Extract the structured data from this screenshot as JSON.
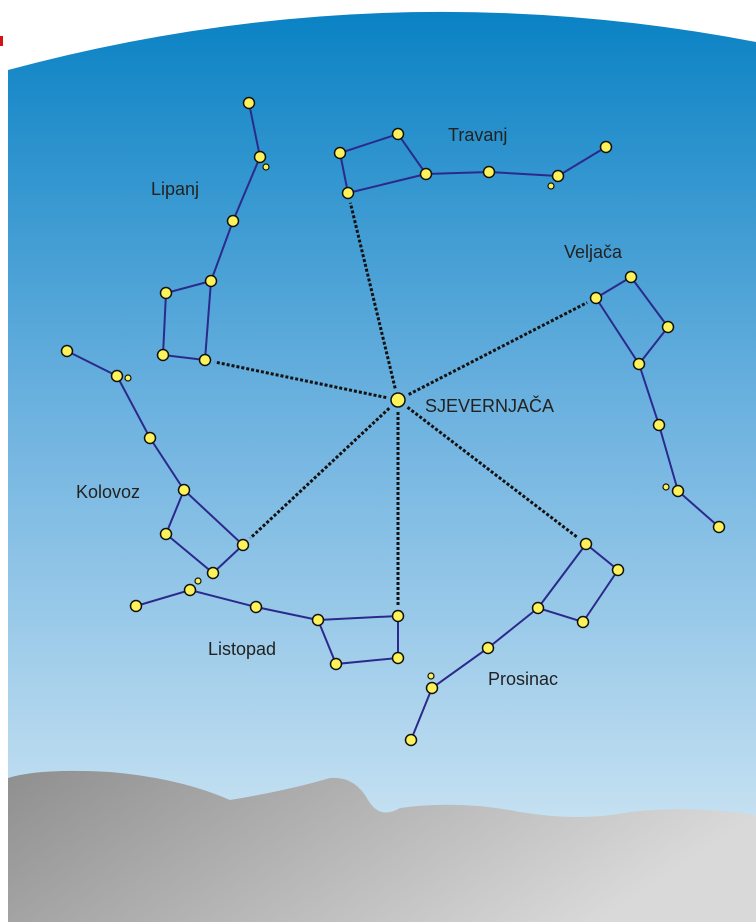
{
  "center": {
    "label": "SJEVERNJAČA"
  },
  "constellations": [
    {
      "label": "Travanj"
    },
    {
      "label": "Lipanj"
    },
    {
      "label": "Veljača"
    },
    {
      "label": "Kolovoz"
    },
    {
      "label": "Listopad"
    },
    {
      "label": "Prosinac"
    }
  ]
}
